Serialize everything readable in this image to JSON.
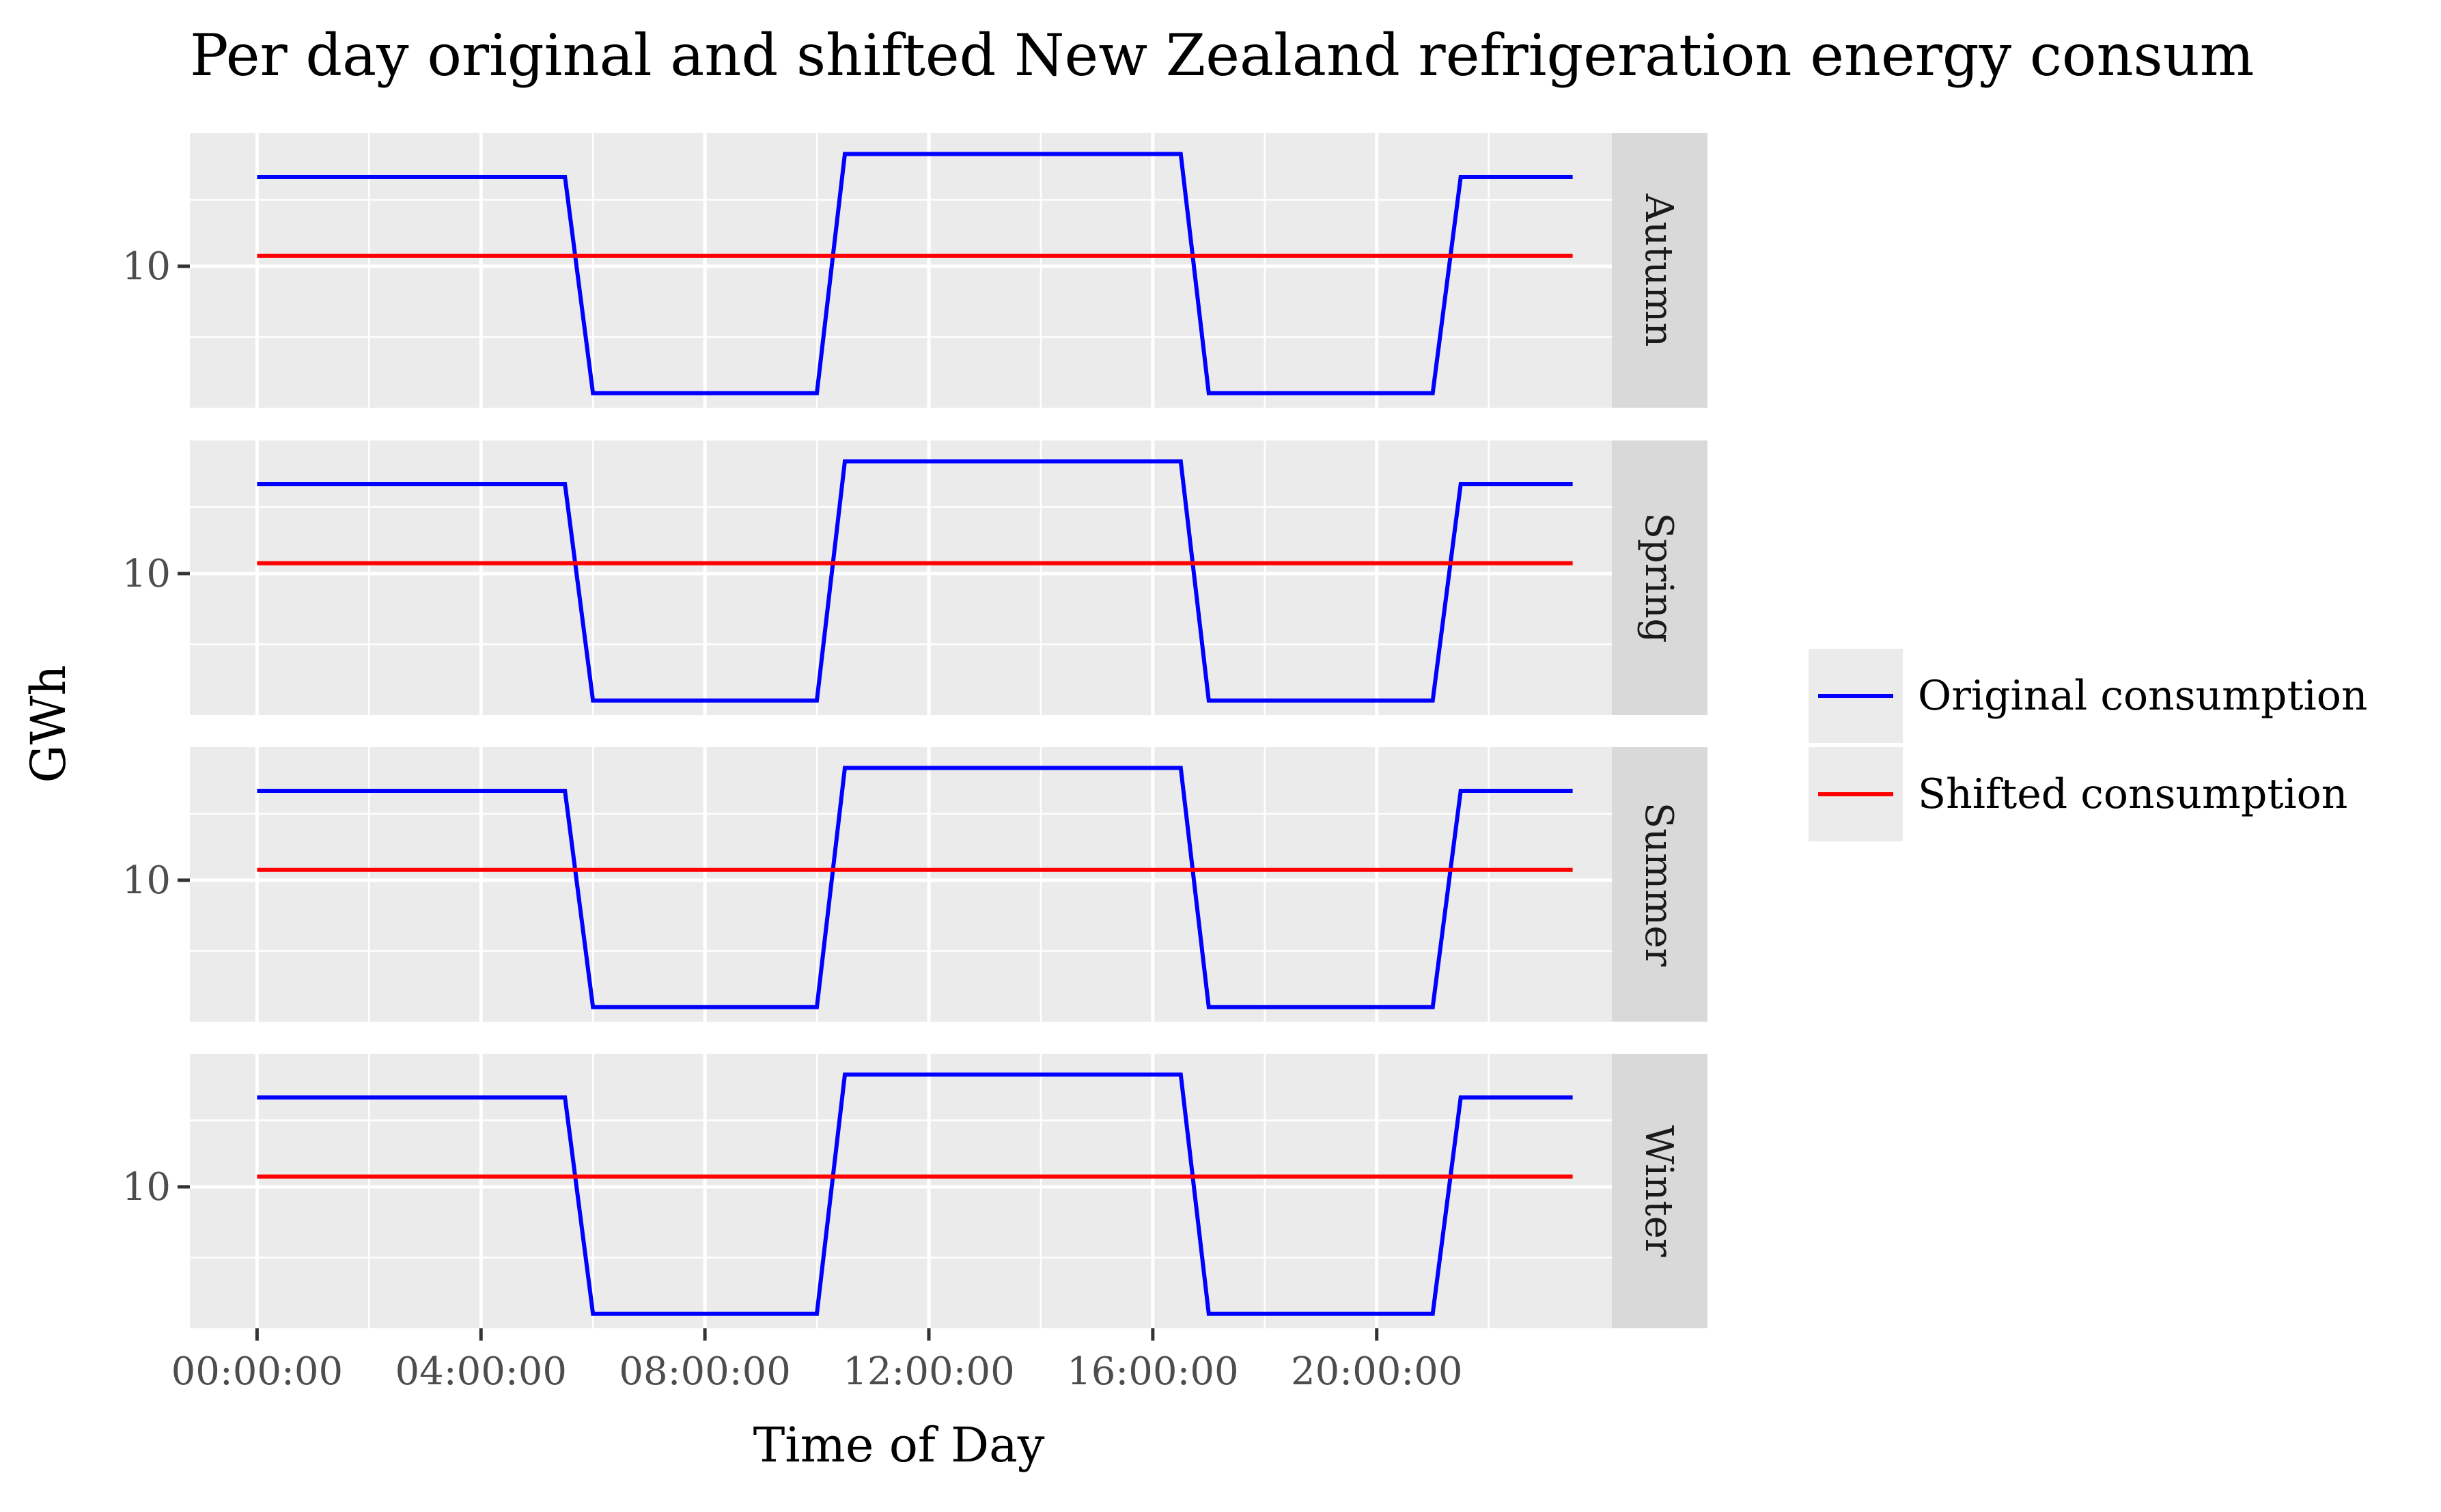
{
  "chart_data": {
    "type": "line",
    "title": "Per day original and shifted New Zealand refrigeration energy consum",
    "xlabel": "Time of Day",
    "ylabel": "GWh",
    "x_unit": "hours",
    "x_ticks": [
      {
        "value": 0,
        "label": "00:00:00"
      },
      {
        "value": 4,
        "label": "04:00:00"
      },
      {
        "value": 8,
        "label": "08:00:00"
      },
      {
        "value": 12,
        "label": "12:00:00"
      },
      {
        "value": 16,
        "label": "16:00:00"
      },
      {
        "value": 20,
        "label": "20:00:00"
      }
    ],
    "y_ticks": [
      {
        "value": 10,
        "label": "10"
      }
    ],
    "xlim": [
      -1.2,
      24.2
    ],
    "ylim": [
      3.2,
      16.4
    ],
    "grid": true,
    "legend_position": "right",
    "panels": [
      "Autumn",
      "Spring",
      "Summer",
      "Winter"
    ],
    "series": [
      {
        "name": "Original consumption",
        "color": "#0000ff",
        "x": [
          0,
          5.5,
          6,
          10,
          10.5,
          16.5,
          17,
          21,
          21.5,
          23.5
        ],
        "values": [
          14.3,
          14.3,
          3.9,
          3.9,
          15.4,
          15.4,
          3.9,
          3.9,
          14.3,
          14.3
        ]
      },
      {
        "name": "Shifted consumption",
        "color": "#ff0000",
        "x": [
          0,
          23.5
        ],
        "values": [
          10.5,
          10.5
        ]
      }
    ]
  }
}
